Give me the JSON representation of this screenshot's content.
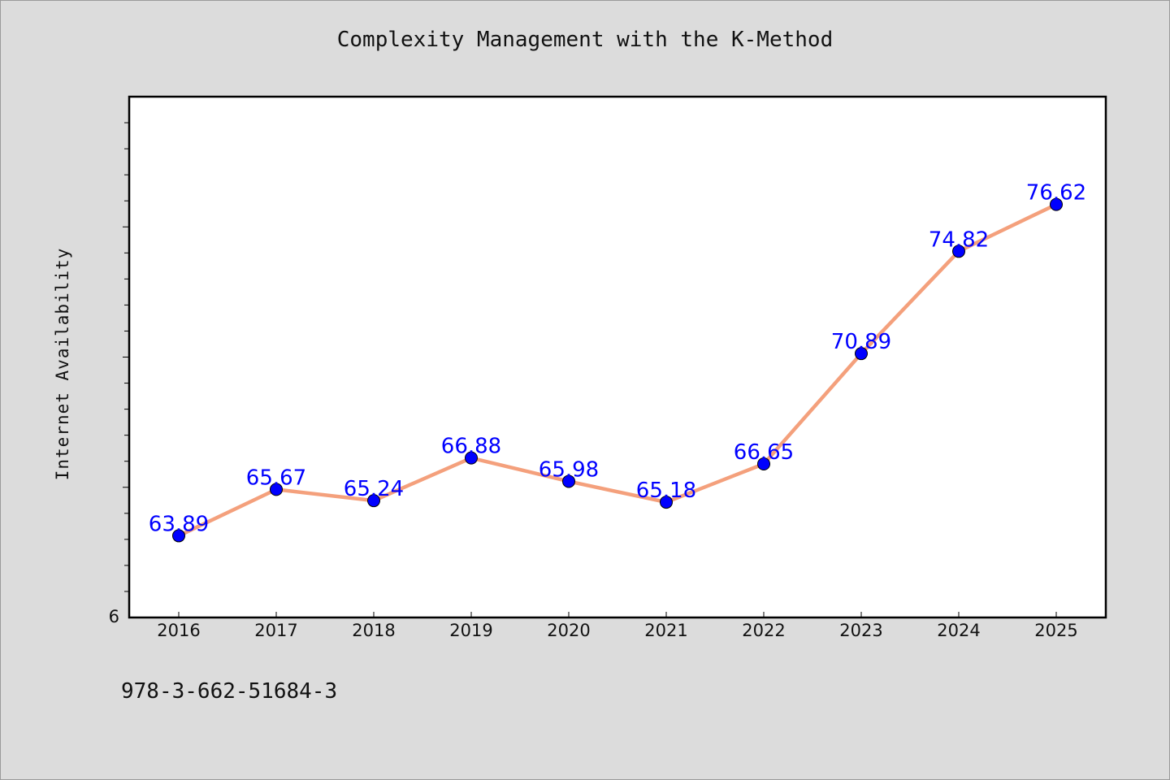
{
  "figure": {
    "footer_text": "978-3-662-51684-3"
  },
  "chart_data": {
    "type": "line",
    "title": "Complexity Management with the K-Method",
    "xlabel": "",
    "ylabel": "Internet Availability",
    "x": [
      "2016",
      "2017",
      "2018",
      "2019",
      "2020",
      "2021",
      "2022",
      "2023",
      "2024",
      "2025"
    ],
    "series": [
      {
        "values": [
          63.89,
          65.67,
          65.24,
          66.88,
          65.98,
          65.18,
          66.65,
          70.89,
          74.82,
          76.62
        ]
      }
    ],
    "data_labels": [
      "63.89",
      "65.67",
      "65.24",
      "66.88",
      "65.98",
      "65.18",
      "66.65",
      "70.89",
      "74.82",
      "76.62"
    ],
    "y_tick_labels": [
      "6"
    ],
    "ylim": [
      60.75,
      80.76
    ],
    "grid": false,
    "legend": "none",
    "line_color": "#f4a07c",
    "marker_color": "#0000ff",
    "label_color": "#0000ff"
  }
}
